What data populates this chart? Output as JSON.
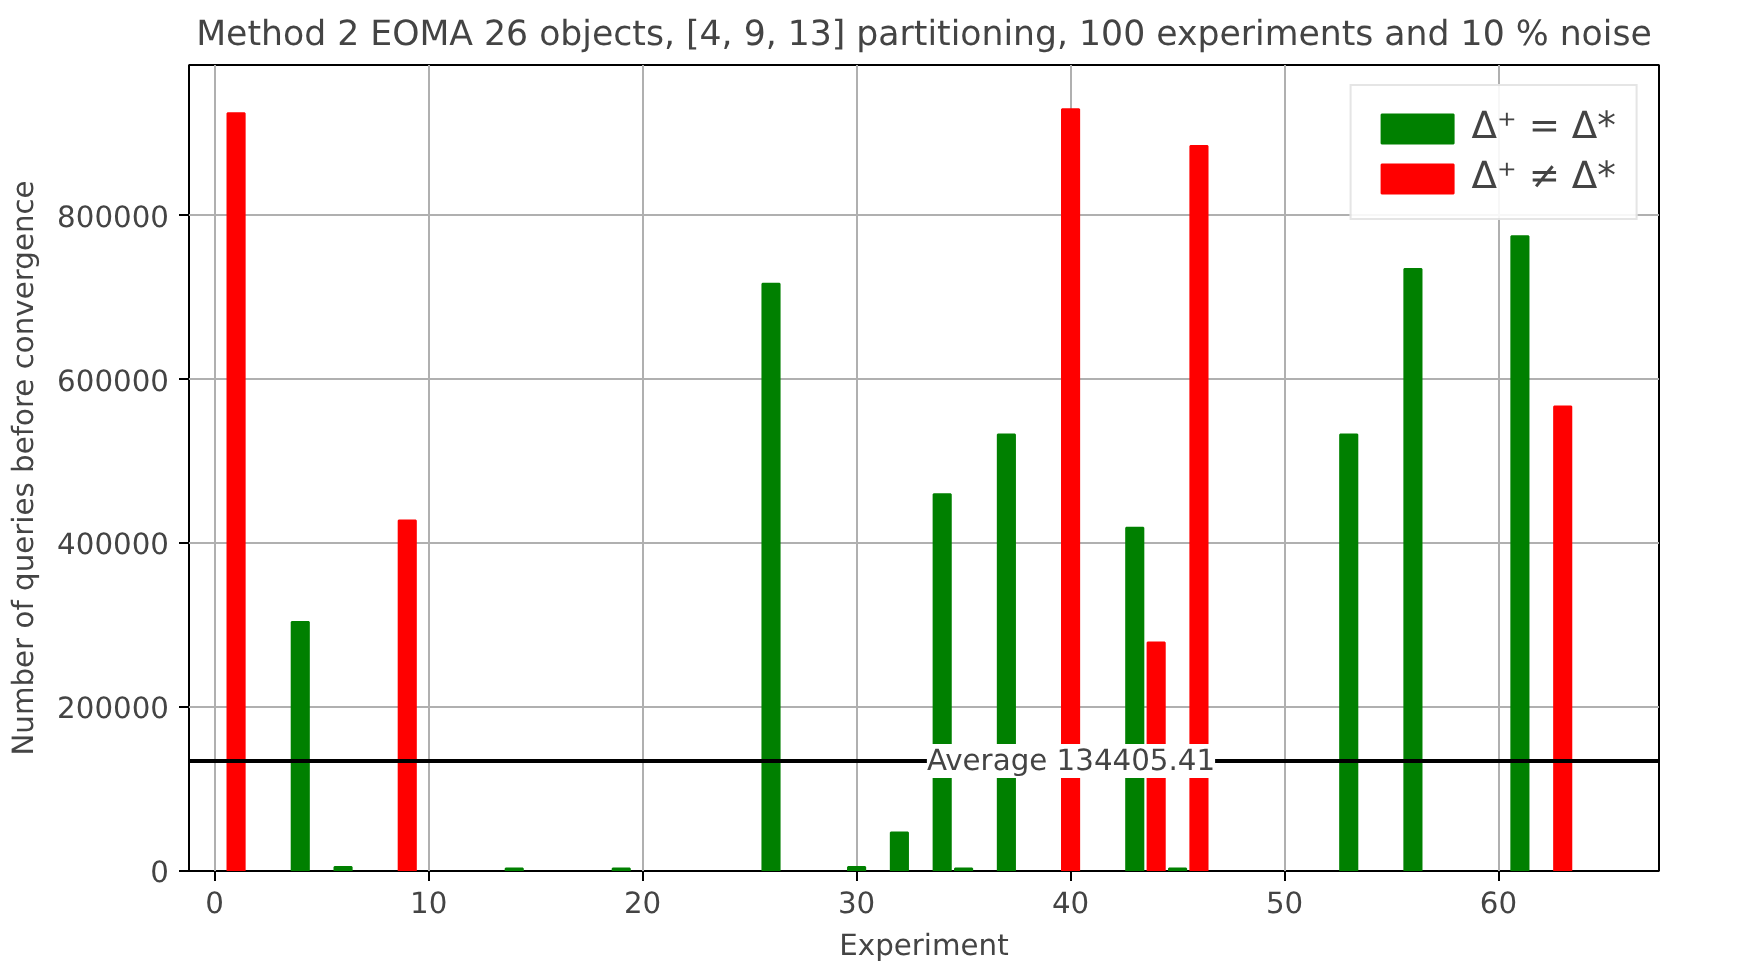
{
  "chart_data": {
    "type": "bar",
    "title": "Method 2 EOMA 26 objects, [4, 9, 13] partitioning, 100 experiments and 10 % noise",
    "xlabel": "Experiment",
    "ylabel": "Number of queries before convergence",
    "series": [
      {
        "name": "Δ⁺ = Δ*",
        "color": "#008000",
        "x": [
          4,
          6,
          14,
          19,
          26,
          30,
          32,
          34,
          35,
          37,
          43,
          45,
          53,
          56,
          61
        ],
        "values": [
          304000,
          5000,
          3000,
          3000,
          717000,
          5000,
          47000,
          460000,
          3000,
          533000,
          419000,
          3000,
          533000,
          735000,
          775000
        ]
      },
      {
        "name": "Δ⁺ ≠ Δ*",
        "color": "#ff0000",
        "x": [
          1,
          9,
          40,
          44,
          46,
          63
        ],
        "values": [
          925000,
          428000,
          930000,
          279000,
          885000,
          567000
        ]
      }
    ],
    "xlim": [
      -1.2,
      67.5
    ],
    "ylim": [
      0,
      984000
    ],
    "xticks": [
      0,
      10,
      20,
      30,
      40,
      50,
      60
    ],
    "yticks": [
      0,
      200000,
      400000,
      600000,
      800000
    ],
    "ref_lines": [
      {
        "axis": "y",
        "value": 134405.41,
        "label": "Average 134405.41",
        "color": "#000000"
      }
    ],
    "grid": true,
    "legend": "top right"
  }
}
